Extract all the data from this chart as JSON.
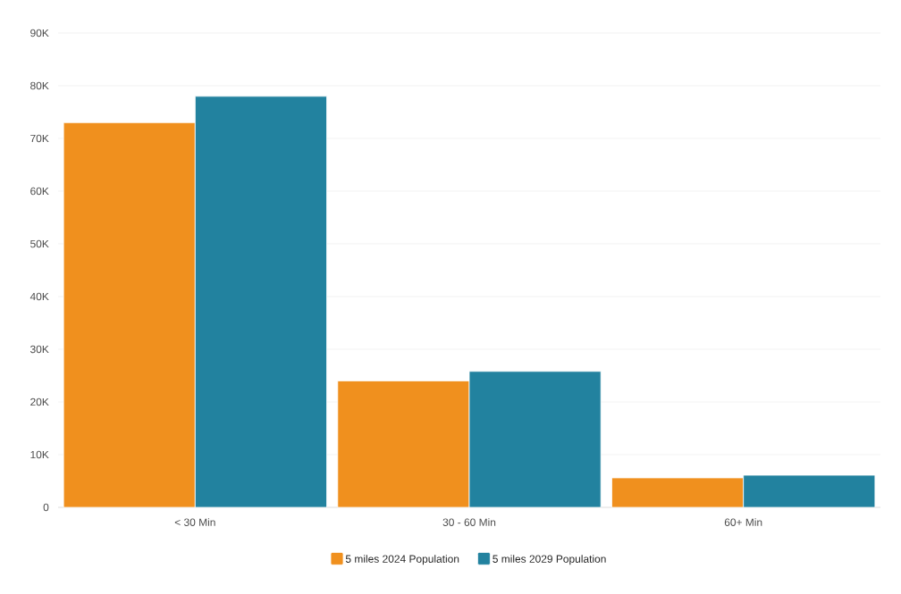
{
  "chart_data": {
    "type": "bar",
    "categories": [
      "< 30 Min",
      "30 - 60 Min",
      "60+ Min"
    ],
    "series": [
      {
        "name": "5 miles 2024 Population",
        "color": "#f0901e",
        "values": [
          73000,
          24000,
          5600
        ]
      },
      {
        "name": "5 miles 2029 Population",
        "color": "#22829f",
        "values": [
          78000,
          25800,
          6100
        ]
      }
    ],
    "ylim": [
      0,
      90000
    ],
    "yticks": [
      {
        "value": 0,
        "label": "0"
      },
      {
        "value": 10000,
        "label": "10K"
      },
      {
        "value": 20000,
        "label": "20K"
      },
      {
        "value": 30000,
        "label": "30K"
      },
      {
        "value": 40000,
        "label": "40K"
      },
      {
        "value": 50000,
        "label": "50K"
      },
      {
        "value": 60000,
        "label": "60K"
      },
      {
        "value": 70000,
        "label": "70K"
      },
      {
        "value": 80000,
        "label": "80K"
      },
      {
        "value": 90000,
        "label": "90K"
      }
    ],
    "grid": "y",
    "legend": "bottom"
  }
}
